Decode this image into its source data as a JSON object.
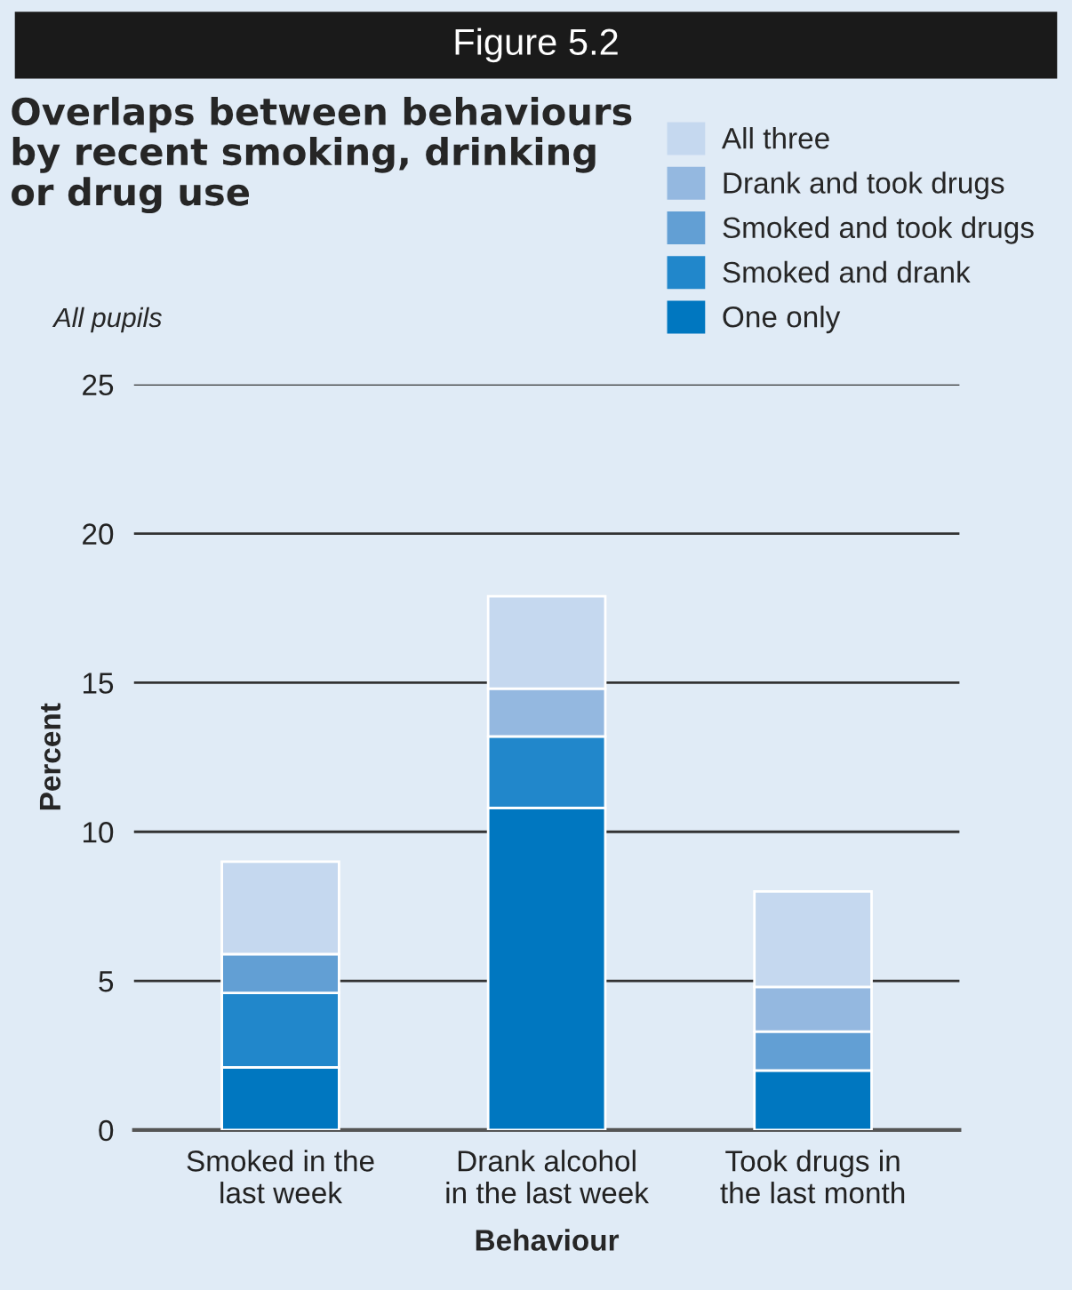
{
  "chart_data": {
    "type": "bar",
    "stacked": true,
    "title": "Overlaps between behaviours by recent smoking, drinking or drug use",
    "subtitle": "All pupils",
    "annotations": [
      "Figure 5.2"
    ],
    "xlabel": "Behaviour",
    "ylabel": "Percent",
    "categories": [
      "Smoked in the\nlast week",
      "Drank alcohol\nin the last week",
      "Took drugs in\nthe last month"
    ],
    "series": [
      {
        "name": "One only",
        "color": "#0077c0",
        "values": [
          2.1,
          10.8,
          2.0
        ]
      },
      {
        "name": "Smoked and drank",
        "color": "#2187cb",
        "values": [
          2.5,
          2.4,
          0
        ]
      },
      {
        "name": "Smoked and took drugs",
        "color": "#629fd4",
        "values": [
          1.3,
          0,
          1.3
        ]
      },
      {
        "name": "Drank and took drugs",
        "color": "#94b8e0",
        "values": [
          0,
          1.6,
          1.5
        ]
      },
      {
        "name": "All three",
        "color": "#c5d8ef",
        "values": [
          3.1,
          3.1,
          3.2
        ]
      }
    ],
    "ylim": [
      0,
      25
    ],
    "yticks": [
      0,
      5,
      10,
      15,
      20,
      25
    ],
    "grid": "y",
    "legend": "top right"
  }
}
